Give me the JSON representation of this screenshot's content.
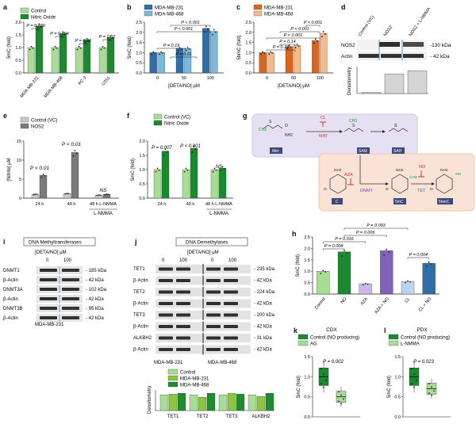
{
  "panel_labels": [
    "a",
    "b",
    "c",
    "d",
    "e",
    "f",
    "g",
    "h",
    "i",
    "j",
    "k",
    "l"
  ],
  "colors": {
    "green_dark": "#1a8a2e",
    "green_light": "#a8dd95",
    "blue_dark": "#2f6fa8",
    "blue_light": "#7ab8dc",
    "orange_dark": "#d9661c",
    "orange_light": "#f5b98a",
    "gray_dark": "#7a7a7a",
    "gray_light": "#c9c9c9",
    "purple_dark": "#8062b8",
    "purple_light": "#c9b8e6",
    "mdamb231": "#8cc63f",
    "mdamb468": "#1f8c2e"
  },
  "chart_data": [
    {
      "id": "a",
      "type": "bar",
      "ylabel": "5mC (fold)",
      "ylim": [
        0,
        2.0
      ],
      "categories": [
        "MDA-MB-231",
        "MDA-MB-468",
        "PC-3",
        "U251"
      ],
      "series": [
        {
          "name": "Control",
          "values": [
            1.0,
            1.0,
            1.0,
            1.0
          ]
        },
        {
          "name": "Nitric Oxide",
          "values": [
            1.85,
            1.55,
            1.3,
            1.4
          ]
        }
      ],
      "annotations": [
        "P = 0.039",
        "P = 0.004",
        "P = 0.01",
        "P = 0.02"
      ]
    },
    {
      "id": "b",
      "type": "bar",
      "ylabel": "5mC (fold)",
      "xlabel": "[DETA/NO] μM",
      "ylim": [
        0,
        2.5
      ],
      "categories": [
        "0",
        "50",
        "100"
      ],
      "series": [
        {
          "name": "MDA-MB-231",
          "values": [
            1.0,
            1.2,
            2.2
          ]
        },
        {
          "name": "MDA-MB-468",
          "values": [
            1.0,
            1.2,
            2.05
          ]
        }
      ],
      "annotations": [
        "P = 0.19",
        "P = 0.01",
        "P < 0.001",
        "P < 0.001"
      ]
    },
    {
      "id": "c",
      "type": "bar",
      "ylabel": "5hmC (fold)",
      "xlabel": "[DETA/NO] μM",
      "ylim": [
        0,
        2.5
      ],
      "categories": [
        "0",
        "50",
        "100"
      ],
      "series": [
        {
          "name": "MDA-MB-231",
          "values": [
            1.0,
            1.3,
            1.6
          ]
        },
        {
          "name": "MDA-MB-468",
          "values": [
            1.0,
            1.35,
            1.95
          ]
        }
      ],
      "annotations": [
        "P = 0.19",
        "P = 0.14",
        "P < 0.001",
        "P < 0.001",
        "P < 0.001"
      ]
    },
    {
      "id": "d",
      "type": "bar",
      "ylabel": "Densitometry",
      "categories": [
        "Control (VC)",
        "NOS2",
        "NOS2 + L-NMMA"
      ],
      "values": [
        0.05,
        0.85,
        1.0
      ]
    },
    {
      "id": "e",
      "type": "bar",
      "ylabel": "[Nitrite] μM",
      "ylim": [
        0,
        15
      ],
      "categories": [
        "24 h",
        "48 h",
        "48 h L-NMMA"
      ],
      "series": [
        {
          "name": "Control (VC)",
          "values": [
            1.0,
            1.2,
            0.8
          ]
        },
        {
          "name": "NOS2",
          "values": [
            6.0,
            12.0,
            1.0
          ]
        }
      ],
      "annotations": [
        "P < 0.01",
        "P < 0.01",
        "NS"
      ],
      "footer": "L-NMMA"
    },
    {
      "id": "f",
      "type": "bar",
      "ylabel": "5mC (fold)",
      "ylim": [
        0,
        2.0
      ],
      "categories": [
        "24 h",
        "48 h",
        "48 h L-NMMA"
      ],
      "series": [
        {
          "name": "Control (VC)",
          "values": [
            1.0,
            1.0,
            1.0
          ]
        },
        {
          "name": "Nitric Oxide",
          "values": [
            1.65,
            1.75,
            1.05
          ]
        }
      ],
      "annotations": [
        "P = 0.007",
        "P < 0.001",
        "NS"
      ],
      "footer": "L-NMMA"
    },
    {
      "id": "h",
      "type": "bar",
      "ylabel": "5mC (fold)",
      "ylim": [
        0,
        2.5
      ],
      "categories": [
        "Control",
        "NO",
        "AZA",
        "AZA + NO",
        "CL",
        "CL + NO"
      ],
      "values": [
        1.0,
        1.85,
        0.45,
        1.9,
        0.55,
        1.35
      ],
      "annotations": [
        "P = 0.008",
        "P = 0.016",
        "P = 0.006",
        "P = 0.093",
        "P = 0.004"
      ]
    },
    {
      "id": "j_dens",
      "type": "bar",
      "ylabel": "Densitometry",
      "categories": [
        "TET1",
        "TET2",
        "TET3",
        "ALKBH2"
      ],
      "series": [
        {
          "name": "Control",
          "values": [
            1.0,
            1.0,
            1.0,
            1.0
          ]
        },
        {
          "name": "MDA-MB-231",
          "values": [
            1.05,
            0.85,
            1.1,
            0.9
          ]
        },
        {
          "name": "MDA-MB-468",
          "values": [
            1.1,
            1.1,
            1.05,
            1.1
          ]
        }
      ]
    },
    {
      "id": "k",
      "type": "box",
      "title": "CDX",
      "ylabel": "5mC (fold)",
      "ylim": [
        0,
        1.5
      ],
      "categories": [
        "Control (NO producing)",
        "AG"
      ],
      "values": [
        1.0,
        0.5
      ],
      "annotations": [
        "P = 0.002"
      ]
    },
    {
      "id": "l",
      "type": "box",
      "title": "PDX",
      "ylabel": "5mC (fold)",
      "ylim": [
        0,
        1.5
      ],
      "categories": [
        "Control (NO producing)",
        "L-NMMA"
      ],
      "values": [
        1.0,
        0.7
      ],
      "annotations": [
        "P = 0.023"
      ]
    }
  ],
  "legends": {
    "a": [
      "Control",
      "Nitric Oxide"
    ],
    "b": [
      "MDA-MB-231",
      "MDA-MB-468"
    ],
    "c": [
      "MDA-MB-231",
      "MDA-MB-468"
    ],
    "e": [
      "Control (VC)",
      "NOS2"
    ],
    "f": [
      "Control (VC)",
      "Nitric Oxide"
    ],
    "j": [
      "Control",
      "MDA-MB-231",
      "MDA-MB-468"
    ],
    "k": [
      "Control (NO producing)",
      "AG"
    ],
    "l": [
      "Control (NO producing)",
      "L-NMMA"
    ]
  },
  "axis_text": {
    "a_y": "5mC (fold)",
    "b_y": "5mC (fold)",
    "c_y": "5hmC (fold)",
    "e_y": "[Nitrite] μM",
    "f_y": "5mC (fold)",
    "h_y": "5mC (fold)",
    "k_y": "5mC (fold)",
    "l_y": "5mC (fold)",
    "d_y": "Densitometry",
    "j_y": "Densitometry",
    "deta_x": "[DETA/NO] μM",
    "lnmma": "L-NMMA"
  },
  "ticks": {
    "a_y": [
      "0.0",
      "0.5",
      "1.0",
      "1.5",
      "2.0"
    ],
    "b_y": [
      "0.0",
      "0.5",
      "1.0",
      "1.5",
      "2.0",
      "2.5"
    ],
    "c_y": [
      "0.0",
      "0.5",
      "1.0",
      "1.5",
      "2.0",
      "2.5"
    ],
    "e_y": [
      "0",
      "5",
      "10",
      "15"
    ],
    "f_y": [
      "0.0",
      "0.5",
      "1.0",
      "1.5",
      "2.0"
    ],
    "h_y": [
      "0.0",
      "0.5",
      "1.0",
      "1.5",
      "2.0",
      "2.5"
    ],
    "kl_y": [
      "0.0",
      "0.5",
      "1.0",
      "1.5"
    ]
  },
  "d_blot": {
    "lanes": [
      "Control (VC)",
      "NOS2",
      "NOS2 + L-NMMA"
    ],
    "rows": [
      {
        "label": "NOS2",
        "size": "-130 kDa"
      },
      {
        "label": "Actin",
        "size": "- 42 kDa"
      }
    ]
  },
  "g_scheme": {
    "cl": "CL",
    "mat": "MAT",
    "met": "Met",
    "sam": "SAM",
    "sah": "SAH",
    "aza": "AZA",
    "dnmt": "DNMT",
    "no": "NO",
    "tet": "TET",
    "c": "C",
    "fivemc": "5mC",
    "fivehmc": "5hmC",
    "ch3": "CH3",
    "oh": "OH",
    "nh2": "NH2",
    "n": "N",
    "o": "O",
    "s": "S",
    "ho": "HO"
  },
  "i_blot": {
    "header": "DNA Methyltransferases",
    "deta": "[DETA/NO] μM",
    "doses": [
      "0",
      "100"
    ],
    "rows": [
      {
        "label": "DNMT1",
        "size": "185 kDa"
      },
      {
        "label": "β-Actin",
        "size": "42 kDa"
      },
      {
        "label": "DNMT3A",
        "size": "102 kDa"
      },
      {
        "label": "β-Actin",
        "size": "42 kDa"
      },
      {
        "label": "DNMT3B",
        "size": "95 kDa"
      },
      {
        "label": "β-Actin",
        "size": "42 kDa"
      }
    ],
    "cell_line": "MDA-MB-231"
  },
  "j_blot": {
    "header": "DNA Demethylases",
    "deta": "[DETA/NO] μM",
    "doses": [
      "0",
      "100",
      "0",
      "100"
    ],
    "rows": [
      {
        "label": "TET1",
        "size": "235 kDa"
      },
      {
        "label": "β-Actin",
        "size": "42 kDa"
      },
      {
        "label": "TET2",
        "size": "224 kDa"
      },
      {
        "label": "β-Actin",
        "size": "42 kDa"
      },
      {
        "label": "TET3",
        "size": "200 kDa"
      },
      {
        "label": "β-Actin",
        "size": "42 kDa"
      },
      {
        "label": "ALKBH2",
        "size": "31 kDa"
      },
      {
        "label": "β-Actin",
        "size": "42 kDa"
      }
    ],
    "cell_lines": [
      "MDA-MB-231",
      "MDA-MB-468"
    ]
  }
}
